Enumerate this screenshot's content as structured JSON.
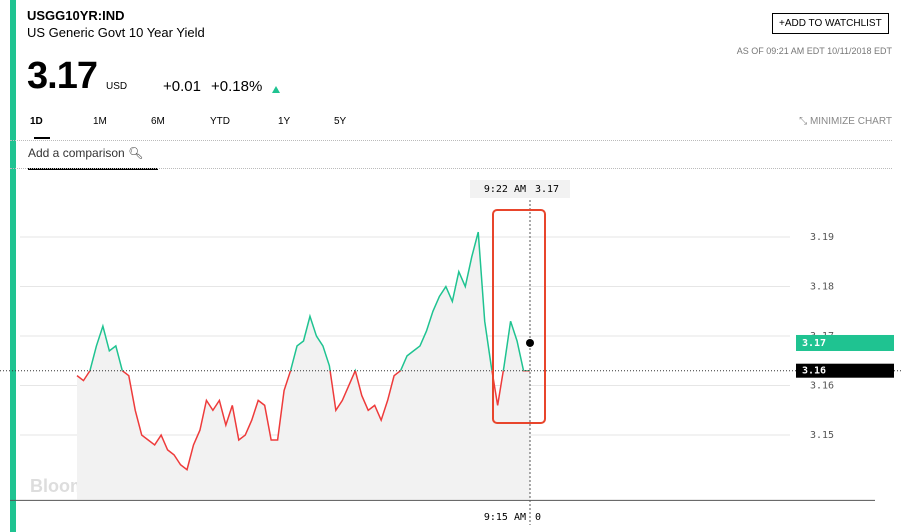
{
  "header": {
    "ticker": "USGG10YR:IND",
    "name": "US Generic Govt 10 Year Yield",
    "watchlist": "+ADD TO WATCHLIST",
    "as_of": "AS OF 09:21 AM EDT 10/11/2018 EDT",
    "price": "3.17",
    "currency": "USD",
    "change": "+0.01",
    "change_pct": "+0.18%",
    "tabs": [
      "1D",
      "1M",
      "6M",
      "YTD",
      "1Y",
      "5Y"
    ],
    "minimize": "MINIMIZE CHART",
    "comparison": "Add a comparison",
    "watermark": "BloombergMarkets"
  },
  "chart_data": {
    "type": "line",
    "values": [
      3.162,
      3.161,
      3.163,
      3.168,
      3.172,
      3.167,
      3.168,
      3.163,
      3.162,
      3.155,
      3.15,
      3.149,
      3.148,
      3.15,
      3.147,
      3.146,
      3.144,
      3.143,
      3.148,
      3.151,
      3.157,
      3.155,
      3.157,
      3.152,
      3.156,
      3.149,
      3.15,
      3.153,
      3.157,
      3.156,
      3.149,
      3.149,
      3.159,
      3.163,
      3.168,
      3.169,
      3.174,
      3.17,
      3.168,
      3.164,
      3.155,
      3.157,
      3.16,
      3.163,
      3.158,
      3.155,
      3.156,
      3.153,
      3.157,
      3.162,
      3.163,
      3.166,
      3.167,
      3.168,
      3.171,
      3.175,
      3.178,
      3.18,
      3.177,
      3.183,
      3.18,
      3.186,
      3.191,
      3.173,
      3.164,
      3.156,
      3.164,
      3.173,
      3.169,
      3.163,
      3.163
    ],
    "up_color": "#1fc391",
    "down_color": "#ee3b3b",
    "ylim": [
      3.137,
      3.203
    ],
    "yticks": [
      3.15,
      3.16,
      3.17,
      3.18,
      3.19
    ],
    "grid": true,
    "baseline": {
      "value": 3.163,
      "label": "3.16"
    },
    "last": {
      "value": 3.1686,
      "label": "3.17"
    },
    "crosshair": {
      "time_top": "9:22 AM",
      "value_top": 3.17,
      "time_bottom": "9:15 AM",
      "value_bottom": 0
    }
  }
}
